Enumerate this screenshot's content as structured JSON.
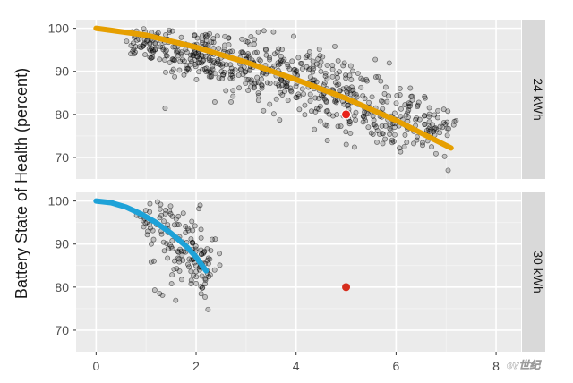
{
  "chart_data": {
    "type": "scatter",
    "ylabel": "Battery State of Health (percent)",
    "x_ticks": [
      "0",
      "2",
      "4",
      "6",
      "8"
    ],
    "y_ticks": [
      "70",
      "80",
      "90",
      "100"
    ],
    "xlim": [
      -0.4,
      8.5
    ],
    "grid": true,
    "facets": [
      {
        "label": "24 kWh",
        "ylim": [
          65,
          102
        ],
        "fit_color": "#e69f00",
        "fit_curve": {
          "x": [
            0,
            1,
            2,
            3,
            4,
            5,
            6,
            7.1
          ],
          "y": [
            100,
            98.4,
            95.6,
            92.1,
            88.1,
            83.7,
            78.6,
            72.2
          ]
        },
        "highlight_point": {
          "x": 5,
          "y": 80,
          "color": "#e8231a"
        },
        "scatter_cloud": [
          {
            "cx": 1.0,
            "cy": 96.5,
            "sx": 0.35,
            "sy": 2.0,
            "n": 70
          },
          {
            "cx": 2.0,
            "cy": 94.0,
            "sx": 0.4,
            "sy": 3.0,
            "n": 130
          },
          {
            "cx": 3.0,
            "cy": 91.0,
            "sx": 0.4,
            "sy": 3.5,
            "n": 120
          },
          {
            "cx": 4.0,
            "cy": 88.0,
            "sx": 0.4,
            "sy": 4.0,
            "n": 110
          },
          {
            "cx": 5.0,
            "cy": 84.0,
            "sx": 0.4,
            "sy": 4.0,
            "n": 110
          },
          {
            "cx": 6.0,
            "cy": 79.0,
            "sx": 0.4,
            "sy": 3.5,
            "n": 110
          },
          {
            "cx": 6.7,
            "cy": 76.0,
            "sx": 0.25,
            "sy": 3.0,
            "n": 40
          }
        ]
      },
      {
        "label": "30 kWh",
        "ylim": [
          65,
          102
        ],
        "fit_color": "#1ea2d8",
        "fit_curve": {
          "x": [
            0,
            0.3,
            0.6,
            0.9,
            1.2,
            1.5,
            1.8,
            2.0,
            2.2
          ],
          "y": [
            100,
            99.6,
            98.6,
            97.0,
            95.0,
            92.5,
            89.5,
            87.0,
            83.8
          ]
        },
        "highlight_point": {
          "x": 5,
          "y": 80,
          "color": "#d62d1d"
        },
        "scatter_cloud": [
          {
            "cx": 1.2,
            "cy": 95.0,
            "sx": 0.3,
            "sy": 3.0,
            "n": 40
          },
          {
            "cx": 1.8,
            "cy": 88.0,
            "sx": 0.3,
            "sy": 4.5,
            "n": 90
          },
          {
            "cx": 2.1,
            "cy": 84.0,
            "sx": 0.15,
            "sy": 3.5,
            "n": 30
          }
        ]
      }
    ]
  },
  "watermark": {
    "text": "ev世纪"
  }
}
